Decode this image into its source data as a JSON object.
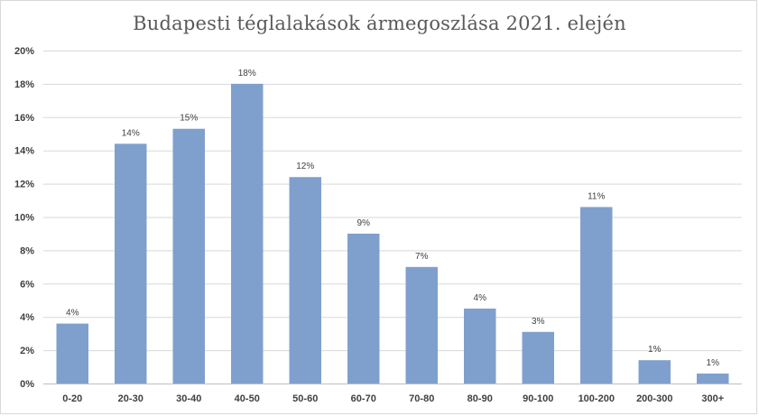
{
  "chart_data": {
    "type": "bar",
    "title": "Budapesti téglalakások ármegoszlása 2021. elején",
    "xlabel": "",
    "ylabel": "",
    "categories": [
      "0-20",
      "20-30",
      "30-40",
      "40-50",
      "50-60",
      "60-70",
      "70-80",
      "80-90",
      "90-100",
      "100-200",
      "200-300",
      "300+"
    ],
    "values": [
      3.6,
      14.4,
      15.3,
      18.0,
      12.4,
      9.0,
      7.0,
      4.5,
      3.1,
      10.6,
      1.4,
      0.6
    ],
    "data_labels": [
      "4%",
      "14%",
      "15%",
      "18%",
      "12%",
      "9%",
      "7%",
      "4%",
      "3%",
      "11%",
      "1%",
      "1%"
    ],
    "y_ticks": [
      0,
      2,
      4,
      6,
      8,
      10,
      12,
      14,
      16,
      18,
      20
    ],
    "y_tick_labels": [
      "0%",
      "2%",
      "4%",
      "6%",
      "8%",
      "10%",
      "12%",
      "14%",
      "16%",
      "18%",
      "20%"
    ],
    "ylim": [
      0,
      20
    ],
    "grid": true,
    "legend": "none",
    "bar_color": "#7fa0cd",
    "grid_color": "#d9d9d9",
    "axis_color": "#bfbfbf"
  }
}
